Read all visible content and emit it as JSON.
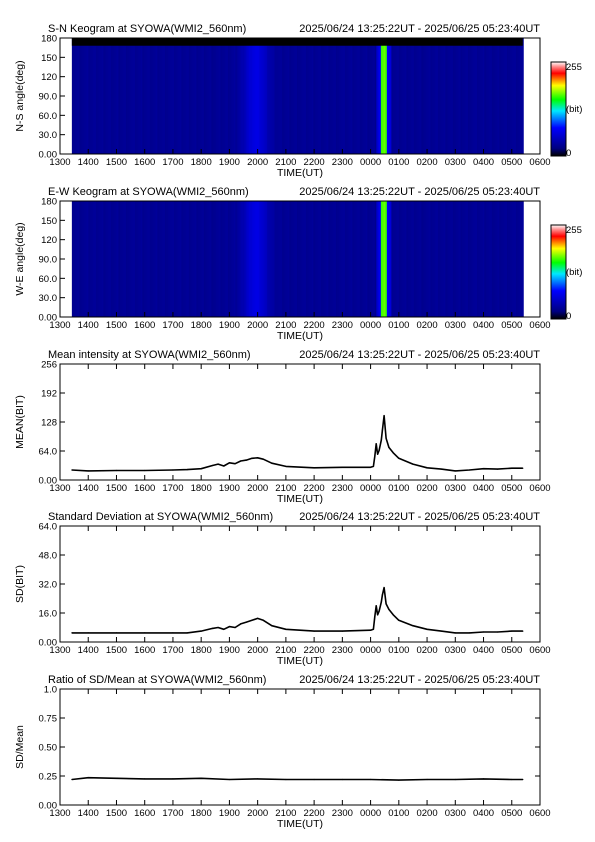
{
  "time_range": "2025/06/24 13:25:22UT - 2025/06/25 05:23:40UT",
  "x_tick_labels": [
    "1300",
    "1400",
    "1500",
    "1600",
    "1700",
    "1800",
    "1900",
    "2000",
    "2100",
    "2200",
    "2300",
    "0000",
    "0100",
    "0200",
    "0300",
    "0400",
    "0500",
    "0600"
  ],
  "colorbar": {
    "max_label": "255",
    "unit_label": "(bit)",
    "min_label": "0"
  },
  "colors": {
    "line": "#000000",
    "heat_low": "#00008b",
    "heat_high": "#ff0000",
    "band": "#44dd33"
  },
  "chart_data": [
    {
      "type": "heatmap",
      "title": "S-N Keogram at SYOWA(WMI2_560nm)",
      "xlabel": "TIME(UT)",
      "ylabel": "N-S angle(deg)",
      "x_range_hours": [
        13,
        30
      ],
      "y_range": [
        0,
        180
      ],
      "y_ticks": [
        "0.00",
        "30.0",
        "60.0",
        "90.0",
        "120",
        "150",
        "180"
      ],
      "data_time_span_hours": [
        13.42,
        29.39
      ],
      "missing_data_above_deg": 168,
      "colorbar_range": [
        0,
        255
      ],
      "intensity_profile": {
        "baseline": 28,
        "diffuse_peak_hour": 19.9,
        "diffuse_peak": 62,
        "band_hour": 24.45,
        "band_peak": 170
      }
    },
    {
      "type": "heatmap",
      "title": "E-W Keogram at SYOWA(WMI2_560nm)",
      "xlabel": "TIME(UT)",
      "ylabel": "W-E angle(deg)",
      "x_range_hours": [
        13,
        30
      ],
      "y_range": [
        0,
        180
      ],
      "y_ticks": [
        "0.00",
        "30.0",
        "60.0",
        "90.0",
        "120",
        "150",
        "180"
      ],
      "data_time_span_hours": [
        13.42,
        29.39
      ],
      "colorbar_range": [
        0,
        255
      ],
      "intensity_profile": {
        "baseline": 28,
        "diffuse_peak_hour": 19.9,
        "diffuse_peak": 62,
        "band_hour": 24.45,
        "band_peak": 170
      }
    },
    {
      "type": "line",
      "title": "Mean intensity at SYOWA(WMI2_560nm)",
      "xlabel": "TIME(UT)",
      "ylabel": "MEAN(BIT)",
      "x_range_hours": [
        13,
        30
      ],
      "ylim": [
        0,
        256
      ],
      "y_ticks": [
        "0.00",
        "64.0",
        "128",
        "192",
        "256"
      ],
      "x": [
        13.42,
        14,
        15,
        16,
        17,
        17.5,
        18,
        18.4,
        18.6,
        18.8,
        19.0,
        19.2,
        19.4,
        19.6,
        19.8,
        20.0,
        20.2,
        20.5,
        21,
        22,
        23,
        24.0,
        24.1,
        24.15,
        24.2,
        24.25,
        24.3,
        24.38,
        24.42,
        24.48,
        24.55,
        24.65,
        24.8,
        25,
        25.5,
        26,
        26.5,
        27,
        27.5,
        28,
        28.5,
        29,
        29.39
      ],
      "values": [
        22,
        20,
        21,
        21,
        22,
        23,
        25,
        32,
        35,
        31,
        38,
        36,
        42,
        44,
        48,
        49,
        46,
        37,
        30,
        27,
        28,
        28,
        30,
        52,
        80,
        57,
        65,
        88,
        110,
        142,
        92,
        72,
        60,
        48,
        35,
        27,
        24,
        20,
        22,
        25,
        24,
        26,
        26
      ]
    },
    {
      "type": "line",
      "title": "Standard Deviation at SYOWA(WMI2_560nm)",
      "xlabel": "TIME(UT)",
      "ylabel": "SD(BIT)",
      "x_range_hours": [
        13,
        30
      ],
      "ylim": [
        0,
        64
      ],
      "y_ticks": [
        "0.00",
        "16.0",
        "32.0",
        "48.0",
        "64.0"
      ],
      "x": [
        13.42,
        14,
        15,
        16,
        17,
        17.5,
        18,
        18.4,
        18.6,
        18.8,
        19.0,
        19.2,
        19.4,
        19.6,
        19.8,
        20.0,
        20.2,
        20.5,
        21,
        22,
        23,
        24.0,
        24.1,
        24.15,
        24.2,
        24.25,
        24.3,
        24.38,
        24.42,
        24.48,
        24.55,
        24.65,
        24.8,
        25,
        25.5,
        26,
        26.5,
        27,
        27.5,
        28,
        28.5,
        29,
        29.39
      ],
      "values": [
        5,
        5,
        5,
        5,
        5,
        5,
        6,
        7.5,
        8,
        7,
        8.5,
        8,
        10,
        11,
        12,
        13,
        12,
        9,
        7,
        6,
        6,
        6.5,
        7,
        14,
        20,
        15,
        17,
        22,
        26,
        30,
        21,
        18,
        15,
        12,
        9,
        7,
        6,
        5,
        5,
        5.5,
        5.5,
        6,
        6
      ]
    },
    {
      "type": "line",
      "title": "Ratio of SD/Mean at SYOWA(WMI2_560nm)",
      "xlabel": "TIME(UT)",
      "ylabel": "SD/Mean",
      "x_range_hours": [
        13,
        30
      ],
      "ylim": [
        0,
        1
      ],
      "y_ticks": [
        "0.00",
        "0.25",
        "0.50",
        "0.75",
        "1.0"
      ],
      "x": [
        13.42,
        14,
        15,
        16,
        17,
        18,
        19,
        20,
        21,
        22,
        23,
        24,
        25,
        26,
        27,
        28,
        29,
        29.39
      ],
      "values": [
        0.22,
        0.235,
        0.23,
        0.225,
        0.225,
        0.23,
        0.22,
        0.225,
        0.22,
        0.22,
        0.22,
        0.22,
        0.215,
        0.22,
        0.22,
        0.225,
        0.22,
        0.22
      ]
    }
  ]
}
